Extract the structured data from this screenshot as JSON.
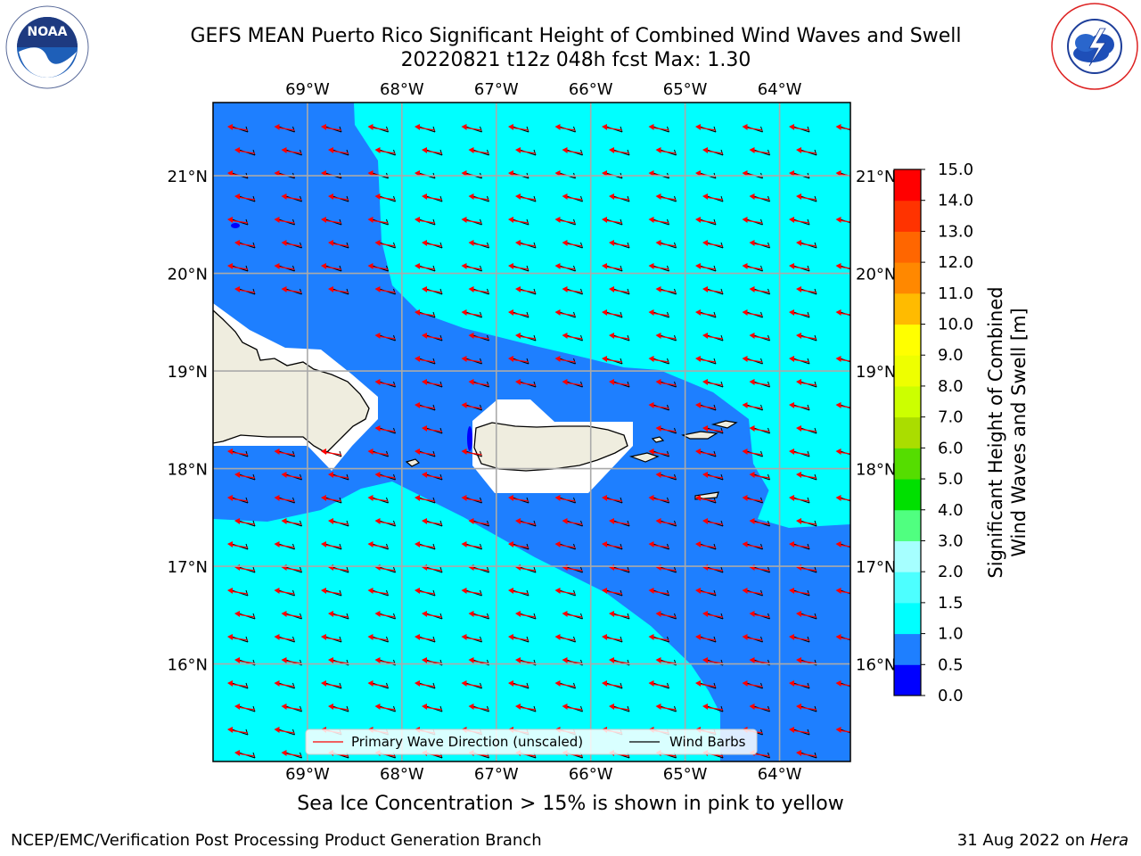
{
  "title": {
    "line1": "GEFS MEAN Puerto Rico Significant Height of Combined Wind Waves and Swell",
    "line2": "20220821 t12z 048h fcst   Max: 1.30"
  },
  "logos": {
    "left": "NOAA",
    "left_ring_text": "NATIONAL OCEANIC AND ATMOSPHERIC ADMINISTRATION · U.S. DEPARTMENT OF COMMERCE",
    "right_ring_text": "NATIONAL WEATHER SERVICE"
  },
  "map": {
    "lon_labels": [
      "69°W",
      "68°W",
      "67°W",
      "66°W",
      "65°W",
      "64°W"
    ],
    "lat_labels": [
      "21°N",
      "20°N",
      "19°N",
      "18°N",
      "17°N",
      "16°N"
    ],
    "lon_range": [
      -70.0,
      -63.25
    ],
    "lat_range": [
      15.0,
      21.75
    ],
    "gridlines": true,
    "vector_direction": "westward"
  },
  "legend": {
    "primary_wave": "Primary Wave Direction (unscaled)",
    "wind_barbs": "Wind Barbs",
    "primary_color": "#ff0000",
    "barb_color": "#000000"
  },
  "colorbar": {
    "label_line1": "Significant Height of Combined",
    "label_line2": "Wind Waves and Swell [m]",
    "ticks": [
      "0.0",
      "0.5",
      "1.0",
      "1.5",
      "2.0",
      "3.0",
      "4.0",
      "5.0",
      "6.0",
      "7.0",
      "8.0",
      "9.0",
      "10.0",
      "11.0",
      "12.0",
      "13.0",
      "14.0",
      "15.0"
    ],
    "colors": [
      "#0000ff",
      "#1e7fff",
      "#00ffff",
      "#4dffff",
      "#a6ffff",
      "#50ff80",
      "#00e000",
      "#55dd00",
      "#aadd00",
      "#ccff00",
      "#eeff00",
      "#ffff00",
      "#ffbb00",
      "#ff8800",
      "#ff6600",
      "#ff3300",
      "#ff0000"
    ]
  },
  "chart_data": {
    "type": "heatmap",
    "title": "GEFS MEAN Puerto Rico Significant Height of Combined Wind Waves and Swell",
    "subtitle": "20220821 t12z 048h fcst   Max: 1.30",
    "max": 1.3,
    "units": "m",
    "regions": [
      {
        "value_range": "0.5-1.0",
        "color": "#1e7fff",
        "areas": "western open ocean north of Hispaniola, Mona Passage, waters around Puerto Rico and Virgin Islands, southeast Caribbean"
      },
      {
        "value_range": "1.0-1.5",
        "color": "#00ffff",
        "areas": "north-central/northeast Atlantic and central Caribbean south of Hispaniola/Puerto Rico"
      },
      {
        "value_range": "0.0-0.5",
        "color": "#0000ff",
        "areas": "small sheltered coastal spots"
      }
    ]
  },
  "footer": {
    "caption": "Sea Ice Concentration > 15% is shown in pink to yellow",
    "left": "NCEP/EMC/Verification Post Processing Product Generation Branch",
    "right_prefix": "31 Aug 2022 on ",
    "right_italic": "Hera"
  }
}
